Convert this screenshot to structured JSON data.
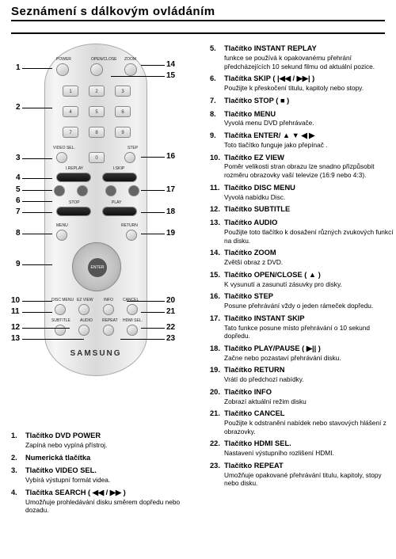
{
  "title": "Seznámení s dálkovým ovládáním",
  "brand": "SAMSUNG",
  "callout_numbers_left": [
    "1",
    "2",
    "3",
    "4",
    "5",
    "6",
    "7",
    "8",
    "9",
    "10",
    "11",
    "12",
    "13"
  ],
  "callout_numbers_right": [
    "14",
    "15",
    "16",
    "17",
    "18",
    "19",
    "20",
    "21",
    "22",
    "23"
  ],
  "remote_labels": {
    "power": "POWER",
    "openclose": "OPEN/CLOSE",
    "zoom": "ZOOM",
    "videosel": "VIDEO SEL.",
    "step": "STEP",
    "isplay": "I.REPLAY",
    "iskip": "I.SKIP",
    "stop": "STOP",
    "play": "PLAY",
    "menu": "MENU",
    "return": "RETURN",
    "enter": "ENTER",
    "discmenu": "DISC MENU",
    "ezview": "EZ VIEW",
    "info": "INFO",
    "cancel": "CANCEL",
    "subtitle": "SUBTITLE",
    "audio": "AUDIO",
    "repeat": "REPEAT",
    "hdmi": "HDMI SEL."
  },
  "keypad": [
    "1",
    "2",
    "3",
    "4",
    "5",
    "6",
    "7",
    "8",
    "9",
    "0"
  ],
  "items_left": [
    {
      "n": "1.",
      "label": "Tlačítko DVD POWER",
      "desc": "Zapíná nebo vypíná přístroj."
    },
    {
      "n": "2.",
      "label": "Numerická tlačítka",
      "desc": ""
    },
    {
      "n": "3.",
      "label": "Tlačítko VIDEO SEL.",
      "desc": "Vybírá výstupní formát videa."
    },
    {
      "n": "4.",
      "label": "Tlačítka SEARCH ( ◀◀ / ▶▶ )",
      "desc": "Umožňuje prohledávání disku směrem dopředu nebo dozadu."
    }
  ],
  "items_right": [
    {
      "n": "5.",
      "label": "Tlačítko INSTANT REPLAY",
      "desc": "funkce se používá k opakovanému přehrání předcházejících 10 sekund filmu od aktuální pozice."
    },
    {
      "n": "6.",
      "label": "Tlačítka SKIP ( |◀◀ / ▶▶| )",
      "desc": "Použijte k přeskočení titulu, kapitoly nebo stopy."
    },
    {
      "n": "7.",
      "label": "Tlačítko STOP ( ■ )",
      "desc": ""
    },
    {
      "n": "8.",
      "label": "Tlačítko MENU",
      "desc": "Vyvolá menu DVD přehrávače."
    },
    {
      "n": "9.",
      "label": "Tlačítka ENTER/ ▲ ▼ ◀ ▶",
      "desc": "Toto tlačítko funguje jako přepínač ."
    },
    {
      "n": "10.",
      "label": "Tlačítko EZ VIEW",
      "desc": "Poměr velikosti stran obrazu lze snadno přizpůsobit rozměru obrazovky vaší televize (16:9 nebo 4:3)."
    },
    {
      "n": "11.",
      "label": "Tlačítko DISC MENU",
      "desc": "Vyvolá nabídku Disc."
    },
    {
      "n": "12.",
      "label": "Tlačítko SUBTITLE",
      "desc": ""
    },
    {
      "n": "13.",
      "label": "Tlačítko AUDIO",
      "desc": "Použijte toto tlačítko k dosažení různých zvukových funkcí na disku."
    },
    {
      "n": "14.",
      "label": "Tlačítko ZOOM",
      "desc": "Zvětší obraz z DVD."
    },
    {
      "n": "15.",
      "label": "Tlačítko OPEN/CLOSE ( ▲ )",
      "desc": "K vysunutí a zasunutí zásuvky pro disky."
    },
    {
      "n": "16.",
      "label": "Tlačítko STEP",
      "desc": "Posune přehrávání vždy o jeden rámeček dopředu."
    },
    {
      "n": "17.",
      "label": "Tlačítko INSTANT SKIP",
      "desc": "Tato funkce posune místo přehrávání o 10 sekund dopředu."
    },
    {
      "n": "18.",
      "label": "Tlačítko PLAY/PAUSE ( ▶|| )",
      "desc": "Začne nebo pozastaví přehrávání disku."
    },
    {
      "n": "19.",
      "label": "Tlačítko RETURN",
      "desc": "Vrátí do předchozí nabídky."
    },
    {
      "n": "20.",
      "label": "Tlačítko INFO",
      "desc": "Zobrazí aktuální režim disku"
    },
    {
      "n": "21.",
      "label": "Tlačítko CANCEL",
      "desc": "Použijte k odstranění nabídek nebo stavových hlášení z obrazovky."
    },
    {
      "n": "22.",
      "label": "Tlačítko HDMI SEL.",
      "desc": "Nastavení výstupního rozlišení HDMI."
    },
    {
      "n": "23.",
      "label": "Tlačítko REPEAT",
      "desc": "Umožňuje opakované přehrávání titulu, kapitoly, stopy nebo disku."
    }
  ]
}
